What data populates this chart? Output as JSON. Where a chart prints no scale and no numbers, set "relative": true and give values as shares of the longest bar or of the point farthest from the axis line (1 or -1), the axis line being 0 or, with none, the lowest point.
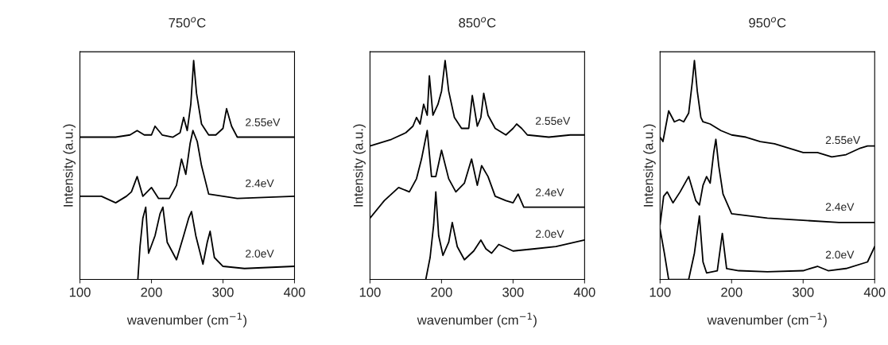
{
  "chart_data": [
    {
      "type": "line",
      "title": "750$^{o}$C",
      "xlabel": "wavenumber (cm$^{−1}$)",
      "ylabel": "Intensity (a.u.)",
      "relative": true,
      "xlim": [
        100,
        400
      ],
      "xticks": [
        100,
        200,
        300,
        400
      ],
      "tick_labels": "x",
      "series": [
        {
          "name": "2.55eV",
          "color": "#000000",
          "x": [
            100,
            150,
            170,
            180,
            190,
            200,
            205,
            215,
            230,
            240,
            245,
            250,
            255,
            259,
            263,
            270,
            280,
            290,
            300,
            305,
            312,
            320,
            350,
            400
          ],
          "values": [
            0.65,
            0.65,
            0.66,
            0.68,
            0.66,
            0.66,
            0.7,
            0.66,
            0.65,
            0.67,
            0.74,
            0.68,
            0.8,
            1.0,
            0.85,
            0.71,
            0.66,
            0.66,
            0.69,
            0.78,
            0.7,
            0.65,
            0.65,
            0.65
          ]
        },
        {
          "name": "2.4eV",
          "color": "#000000",
          "x": [
            100,
            130,
            150,
            165,
            172,
            180,
            188,
            200,
            210,
            225,
            235,
            242,
            248,
            254,
            258,
            264,
            270,
            280,
            300,
            320,
            400
          ],
          "values": [
            0.38,
            0.38,
            0.35,
            0.38,
            0.4,
            0.47,
            0.38,
            0.42,
            0.37,
            0.37,
            0.43,
            0.55,
            0.48,
            0.62,
            0.68,
            0.63,
            0.52,
            0.39,
            0.38,
            0.37,
            0.38
          ]
        },
        {
          "name": "2.0eV",
          "color": "#000000",
          "x": [
            181,
            184,
            188,
            192,
            196,
            205,
            212,
            216,
            222,
            235,
            245,
            252,
            256,
            262,
            272,
            278,
            282,
            288,
            300,
            330,
            400
          ],
          "values": [
            0,
            0.15,
            0.28,
            0.33,
            0.12,
            0.2,
            0.3,
            0.33,
            0.17,
            0.09,
            0.2,
            0.28,
            0.31,
            0.2,
            0.07,
            0.17,
            0.22,
            0.1,
            0.06,
            0.05,
            0.06
          ]
        }
      ]
    },
    {
      "type": "line",
      "title": "850$^{o}$C",
      "xlabel": "wavenumber (cm$^{−1}$)",
      "ylabel": "Intensity (a.u.)",
      "relative": true,
      "xlim": [
        100,
        400
      ],
      "xticks": [
        100,
        200,
        300,
        400
      ],
      "tick_labels": "x",
      "series": [
        {
          "name": "2.55eV",
          "color": "#000000",
          "x": [
            100,
            130,
            150,
            160,
            165,
            170,
            175,
            180,
            183,
            188,
            195,
            200,
            205,
            210,
            218,
            228,
            238,
            243,
            250,
            255,
            259,
            265,
            275,
            290,
            300,
            305,
            312,
            320,
            350,
            380,
            400
          ],
          "values": [
            0.61,
            0.64,
            0.67,
            0.7,
            0.74,
            0.71,
            0.8,
            0.75,
            0.93,
            0.75,
            0.8,
            0.86,
            1.0,
            0.86,
            0.74,
            0.69,
            0.69,
            0.84,
            0.7,
            0.74,
            0.85,
            0.75,
            0.69,
            0.66,
            0.69,
            0.71,
            0.69,
            0.66,
            0.65,
            0.66,
            0.66
          ]
        },
        {
          "name": "2.4eV",
          "color": "#000000",
          "x": [
            100,
            120,
            140,
            155,
            165,
            172,
            180,
            186,
            192,
            200,
            210,
            220,
            232,
            242,
            250,
            256,
            265,
            275,
            290,
            300,
            307,
            315,
            350,
            400
          ],
          "values": [
            0.28,
            0.36,
            0.42,
            0.4,
            0.46,
            0.55,
            0.68,
            0.47,
            0.47,
            0.59,
            0.46,
            0.4,
            0.44,
            0.55,
            0.43,
            0.52,
            0.47,
            0.38,
            0.36,
            0.35,
            0.39,
            0.33,
            0.33,
            0.33
          ]
        },
        {
          "name": "2.0eV",
          "color": "#000000",
          "x": [
            178,
            184,
            189,
            192,
            196,
            202,
            210,
            215,
            222,
            232,
            245,
            255,
            262,
            270,
            280,
            300,
            330,
            360,
            400
          ],
          "values": [
            0,
            0.1,
            0.25,
            0.4,
            0.2,
            0.11,
            0.17,
            0.26,
            0.15,
            0.09,
            0.13,
            0.18,
            0.14,
            0.12,
            0.16,
            0.13,
            0.14,
            0.15,
            0.18
          ]
        }
      ]
    },
    {
      "type": "line",
      "title": "950$^{o}$C",
      "xlabel": "wavenumber (cm$^{−1}$)",
      "ylabel": "Intensity (a.u.)",
      "relative": true,
      "xlim": [
        100,
        400
      ],
      "xticks": [
        100,
        200,
        300,
        400
      ],
      "tick_labels": "x",
      "series": [
        {
          "name": "2.55eV",
          "color": "#000000",
          "x": [
            100,
            104,
            112,
            120,
            127,
            133,
            140,
            145,
            148,
            152,
            157,
            160,
            170,
            185,
            200,
            220,
            240,
            260,
            280,
            300,
            320,
            340,
            360,
            380,
            390,
            400
          ],
          "values": [
            0.65,
            0.63,
            0.77,
            0.72,
            0.73,
            0.72,
            0.76,
            0.9,
            1.0,
            0.86,
            0.74,
            0.72,
            0.71,
            0.68,
            0.66,
            0.65,
            0.63,
            0.62,
            0.6,
            0.58,
            0.58,
            0.56,
            0.57,
            0.6,
            0.61,
            0.61
          ]
        },
        {
          "name": "2.4eV",
          "color": "#000000",
          "x": [
            100,
            105,
            110,
            118,
            128,
            140,
            150,
            155,
            160,
            165,
            170,
            175,
            178,
            182,
            188,
            200,
            250,
            300,
            350,
            400
          ],
          "values": [
            0.25,
            0.38,
            0.4,
            0.35,
            0.4,
            0.47,
            0.36,
            0.34,
            0.43,
            0.47,
            0.44,
            0.58,
            0.64,
            0.52,
            0.39,
            0.3,
            0.28,
            0.27,
            0.26,
            0.26
          ]
        },
        {
          "name": "2.0eV",
          "color": "#000000",
          "x": [
            100,
            106,
            112,
            140,
            148,
            155,
            160,
            165,
            180,
            187,
            193,
            210,
            250,
            300,
            320,
            335,
            360,
            390,
            400
          ],
          "values": [
            0.23,
            0.12,
            0,
            0,
            0.12,
            0.29,
            0.08,
            0.03,
            0.04,
            0.21,
            0.05,
            0.04,
            0.035,
            0.04,
            0.06,
            0.04,
            0.05,
            0.08,
            0.15
          ]
        }
      ]
    }
  ]
}
